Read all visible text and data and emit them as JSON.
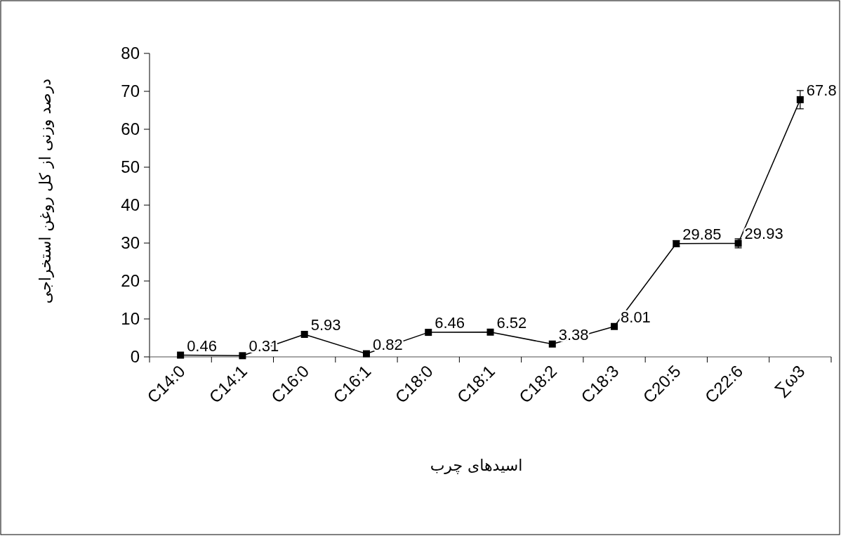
{
  "chart_data": {
    "type": "line",
    "xlabel": "اسیدهای چرب",
    "ylabel": "درصد وزنی از کل روغن استخراجی",
    "categories": [
      "C14:0",
      "C14:1",
      "C16:0",
      "C16:1",
      "C18:0",
      "C18:1",
      "C18:2",
      "C18:3",
      "C20:5",
      "C22:6",
      "∑ω3"
    ],
    "series": [
      {
        "color": "#000000",
        "values": [
          0.46,
          0.31,
          5.93,
          0.82,
          6.46,
          6.52,
          3.38,
          8.01,
          29.85,
          29.93,
          67.8
        ],
        "errors": [
          null,
          null,
          null,
          null,
          null,
          null,
          null,
          null,
          0.8,
          1.2,
          2.4
        ]
      }
    ],
    "ylim": [
      0,
      80
    ],
    "yticks": [
      0,
      10,
      20,
      30,
      40,
      50,
      60,
      70,
      80
    ],
    "data_labels": true,
    "marker": "square",
    "line_style": "solid"
  }
}
